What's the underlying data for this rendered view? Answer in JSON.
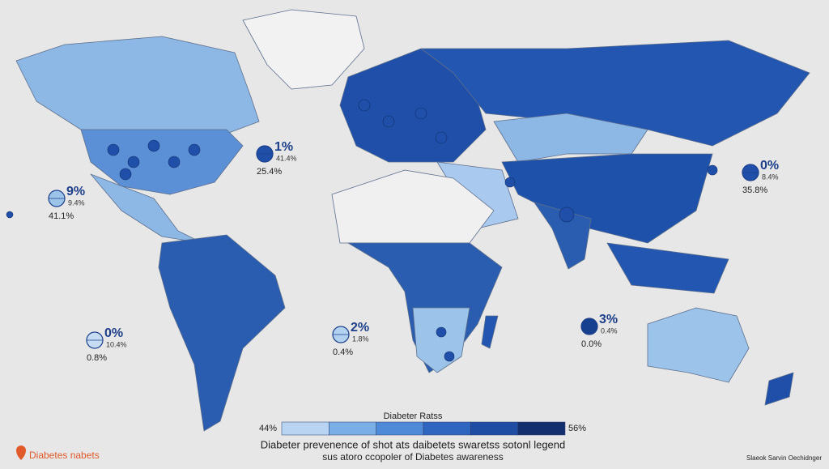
{
  "callouts": [
    {
      "big": "1%",
      "small": "41.4%",
      "value": "25.4%",
      "color": "#1f4fa8"
    },
    {
      "big": "9%",
      "small": "9.4%",
      "value": "41.1%",
      "color": "#9cc3ea"
    },
    {
      "big": "0%",
      "small": "8.4%",
      "value": "35.8%",
      "color": "#1f4fa8"
    },
    {
      "big": "0%",
      "small": "10.4%",
      "value": "0.8%",
      "color": "#c5dcf3"
    },
    {
      "big": "2%",
      "small": "1.8%",
      "value": "0.4%",
      "color": "#b3d1f0"
    },
    {
      "big": "3%",
      "small": "0.4%",
      "value": "0.0%",
      "color": "#17408f"
    }
  ],
  "legend": {
    "title": "Diabeter Ratss",
    "min_label": "44%",
    "max_label": "56%",
    "colors": [
      "#b8d4f2",
      "#7aaee6",
      "#4f8ad8",
      "#2f66c0",
      "#1e4da3",
      "#142f6e"
    ],
    "description": [
      "Diabeter prevenence of shot ats daibetets swaretss sotonl legend",
      "sus atoro ccopoler of Diabetes awareness"
    ]
  },
  "footer": {
    "logo_text": "Diabetes nabets",
    "credit": "Slaeok Sarvin Oechidnger"
  }
}
